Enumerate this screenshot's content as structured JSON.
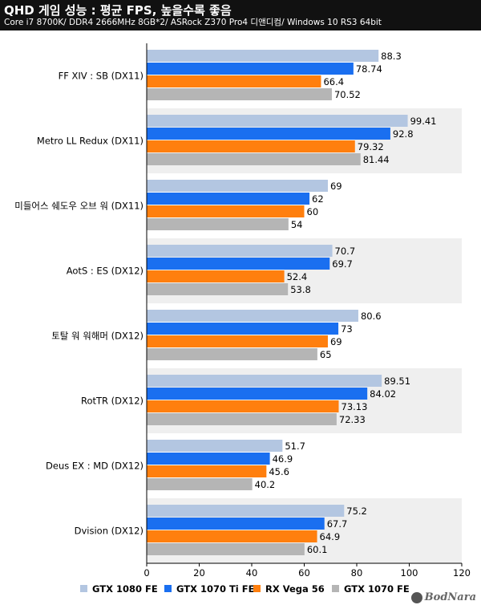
{
  "header": {
    "title": "QHD 게임 성능 : 평균 FPS, 높을수록 좋음",
    "subtitle": "Core i7 8700K/ DDR4 2666MHz 8GB*2/ ASRock Z370 Pro4 디앤디컴/ Windows 10 RS3 64bit"
  },
  "watermark": "BodNara",
  "chart_data": {
    "type": "bar",
    "orientation": "horizontal",
    "categories": [
      "FF XIV : SB (DX11)",
      "Metro LL Redux (DX11)",
      "미들어스 쉐도우 오브 워 (DX11)",
      "AotS : ES (DX12)",
      "토탈 워 워해머 (DX12)",
      "RotTR (DX12)",
      "Deus EX : MD (DX12)",
      "Dvision (DX12)"
    ],
    "series": [
      {
        "name": "GTX 1080 FE",
        "color": "#b3c6e1",
        "values": [
          88.3,
          99.41,
          69,
          70.7,
          80.6,
          89.51,
          51.7,
          75.2
        ],
        "labels": [
          "88.3",
          "99.41",
          "69",
          "70.7",
          "80.6",
          "89.51",
          "51.7",
          "75.2"
        ]
      },
      {
        "name": "GTX 1070 Ti FE",
        "color": "#1a6ff0",
        "values": [
          78.74,
          92.8,
          62,
          69.7,
          73,
          84.02,
          46.9,
          67.7
        ],
        "labels": [
          "78.74",
          "92.8",
          "62",
          "69.7",
          "73",
          "84.02",
          "46.9",
          "67.7"
        ]
      },
      {
        "name": "RX Vega 56",
        "color": "#ff7f0e",
        "values": [
          66.4,
          79.32,
          60,
          52.4,
          69,
          73.13,
          45.6,
          64.9
        ],
        "labels": [
          "66.4",
          "79.32",
          "60",
          "52.4",
          "69",
          "73.13",
          "45.6",
          "64.9"
        ]
      },
      {
        "name": "GTX 1070 FE",
        "color": "#b5b5b5",
        "values": [
          70.52,
          81.44,
          54,
          53.8,
          65,
          72.33,
          40.2,
          60.1
        ],
        "labels": [
          "70.52",
          "81.44",
          "54",
          "53.8",
          "65",
          "72.33",
          "40.2",
          "60.1"
        ]
      }
    ],
    "xlim": [
      0,
      120
    ],
    "xticks": [
      0,
      20,
      40,
      60,
      80,
      100,
      120
    ],
    "band_color": "#efefef",
    "legend_position": "bottom",
    "grid": false
  }
}
